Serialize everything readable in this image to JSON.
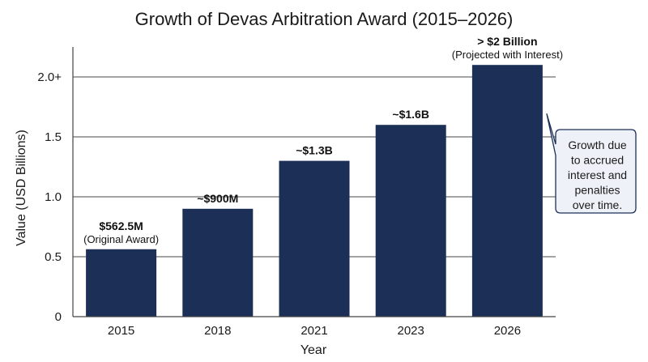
{
  "chart_data": {
    "type": "bar",
    "title": "Growth of Devas Arbitration Award (2015–2026)",
    "xlabel": "Year",
    "ylabel": "Value (USD Billions)",
    "categories": [
      "2015",
      "2018",
      "2021",
      "2023",
      "2026"
    ],
    "values": [
      0.5625,
      0.9,
      1.3,
      1.6,
      2.1
    ],
    "ylim": [
      0,
      2.25
    ],
    "yticks": [
      0,
      0.5,
      1.0,
      1.5,
      2.0
    ],
    "ytick_labels": [
      "0",
      "0.5",
      "1.0",
      "1.5",
      "2.0+"
    ],
    "grid": true,
    "bar_color": "#1c2f57",
    "data_labels": [
      "$562.5M",
      "~$900M",
      "~$1.3B",
      "~$1.6B",
      "> $2 Billion"
    ],
    "data_sublabels": [
      "(Original Award)",
      "",
      "",
      "",
      "(Projected with Interest)"
    ],
    "annotation": {
      "lines": [
        "Growth due",
        "to accrued",
        "interest and",
        "penalties",
        "over time."
      ],
      "box_color": "#eef2f8",
      "border_color": "#1c2f57"
    }
  }
}
